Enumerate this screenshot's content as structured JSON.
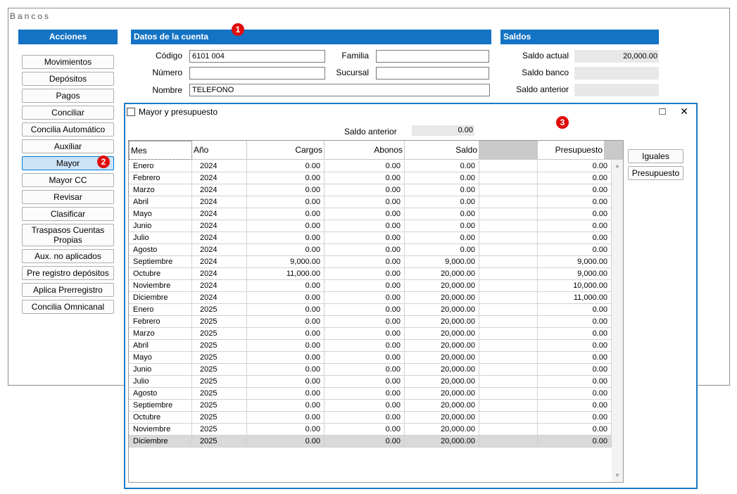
{
  "window": {
    "title": "Bancos"
  },
  "acciones": {
    "header": "Acciones",
    "buttons": [
      {
        "label": "Movimientos"
      },
      {
        "label": "Depósitos"
      },
      {
        "label": "Pagos"
      },
      {
        "label": "Conciliar"
      },
      {
        "label": "Concilia Automático"
      },
      {
        "label": "Auxiliar"
      },
      {
        "label": "Mayor"
      },
      {
        "label": "Mayor CC"
      },
      {
        "label": "Revisar"
      },
      {
        "label": "Clasificar"
      },
      {
        "label": "Traspasos  Cuentas Propias"
      },
      {
        "label": "Aux. no aplicados"
      },
      {
        "label": "Pre registro depósitos"
      },
      {
        "label": "Aplica Prerregistro"
      },
      {
        "label": "Concilia Omnicanal"
      }
    ]
  },
  "cuenta": {
    "header": "Datos de la cuenta",
    "codigo_label": "Código",
    "codigo_value": "6101 004",
    "familia_label": "Familia",
    "familia_value": "",
    "numero_label": "Número",
    "numero_value": "",
    "sucursal_label": "Sucursal",
    "sucursal_value": "",
    "nombre_label": "Nombre",
    "nombre_value": "TELEFONO"
  },
  "saldos": {
    "header": "Saldos",
    "actual_label": "Saldo actual",
    "actual_value": "20,000.00",
    "banco_label": "Saldo banco",
    "banco_value": "",
    "anterior_label": "Saldo anterior",
    "anterior_value": ""
  },
  "badges": {
    "one": "1",
    "two": "2",
    "three": "3"
  },
  "dialog": {
    "title": "Mayor y presupuesto",
    "maximize_icon": "□",
    "close_icon": "✕",
    "saldo_anterior_label": "Saldo anterior",
    "saldo_anterior_value": "0.00",
    "iguales_label": "Iguales",
    "presupuesto_label": "Presupuesto",
    "columns": {
      "mes": "Mes",
      "anio": "Año",
      "cargos": "Cargos",
      "abonos": "Abonos",
      "saldo": "Saldo",
      "presupuesto": "Presupuesto"
    },
    "rows": [
      {
        "mes": "Enero",
        "anio": "2024",
        "cargos": "0.00",
        "abonos": "0.00",
        "saldo": "0.00",
        "presupuesto": "0.00"
      },
      {
        "mes": "Febrero",
        "anio": "2024",
        "cargos": "0.00",
        "abonos": "0.00",
        "saldo": "0.00",
        "presupuesto": "0.00"
      },
      {
        "mes": "Marzo",
        "anio": "2024",
        "cargos": "0.00",
        "abonos": "0.00",
        "saldo": "0.00",
        "presupuesto": "0.00"
      },
      {
        "mes": "Abril",
        "anio": "2024",
        "cargos": "0.00",
        "abonos": "0.00",
        "saldo": "0.00",
        "presupuesto": "0.00"
      },
      {
        "mes": "Mayo",
        "anio": "2024",
        "cargos": "0.00",
        "abonos": "0.00",
        "saldo": "0.00",
        "presupuesto": "0.00"
      },
      {
        "mes": "Junio",
        "anio": "2024",
        "cargos": "0.00",
        "abonos": "0.00",
        "saldo": "0.00",
        "presupuesto": "0.00"
      },
      {
        "mes": "Julio",
        "anio": "2024",
        "cargos": "0.00",
        "abonos": "0.00",
        "saldo": "0.00",
        "presupuesto": "0.00"
      },
      {
        "mes": "Agosto",
        "anio": "2024",
        "cargos": "0.00",
        "abonos": "0.00",
        "saldo": "0.00",
        "presupuesto": "0.00"
      },
      {
        "mes": "Septiembre",
        "anio": "2024",
        "cargos": "9,000.00",
        "abonos": "0.00",
        "saldo": "9,000.00",
        "presupuesto": "9,000.00"
      },
      {
        "mes": "Octubre",
        "anio": "2024",
        "cargos": "11,000.00",
        "abonos": "0.00",
        "saldo": "20,000.00",
        "presupuesto": "9,000.00"
      },
      {
        "mes": "Noviembre",
        "anio": "2024",
        "cargos": "0.00",
        "abonos": "0.00",
        "saldo": "20,000.00",
        "presupuesto": "10,000.00"
      },
      {
        "mes": "Diciembre",
        "anio": "2024",
        "cargos": "0.00",
        "abonos": "0.00",
        "saldo": "20,000.00",
        "presupuesto": "11,000.00"
      },
      {
        "mes": "Enero",
        "anio": "2025",
        "cargos": "0.00",
        "abonos": "0.00",
        "saldo": "20,000.00",
        "presupuesto": "0.00"
      },
      {
        "mes": "Febrero",
        "anio": "2025",
        "cargos": "0.00",
        "abonos": "0.00",
        "saldo": "20,000.00",
        "presupuesto": "0.00"
      },
      {
        "mes": "Marzo",
        "anio": "2025",
        "cargos": "0.00",
        "abonos": "0.00",
        "saldo": "20,000.00",
        "presupuesto": "0.00"
      },
      {
        "mes": "Abril",
        "anio": "2025",
        "cargos": "0.00",
        "abonos": "0.00",
        "saldo": "20,000.00",
        "presupuesto": "0.00"
      },
      {
        "mes": "Mayo",
        "anio": "2025",
        "cargos": "0.00",
        "abonos": "0.00",
        "saldo": "20,000.00",
        "presupuesto": "0.00"
      },
      {
        "mes": "Junio",
        "anio": "2025",
        "cargos": "0.00",
        "abonos": "0.00",
        "saldo": "20,000.00",
        "presupuesto": "0.00"
      },
      {
        "mes": "Julio",
        "anio": "2025",
        "cargos": "0.00",
        "abonos": "0.00",
        "saldo": "20,000.00",
        "presupuesto": "0.00"
      },
      {
        "mes": "Agosto",
        "anio": "2025",
        "cargos": "0.00",
        "abonos": "0.00",
        "saldo": "20,000.00",
        "presupuesto": "0.00"
      },
      {
        "mes": "Septiembre",
        "anio": "2025",
        "cargos": "0.00",
        "abonos": "0.00",
        "saldo": "20,000.00",
        "presupuesto": "0.00"
      },
      {
        "mes": "Octubre",
        "anio": "2025",
        "cargos": "0.00",
        "abonos": "0.00",
        "saldo": "20,000.00",
        "presupuesto": "0.00"
      },
      {
        "mes": "Noviembre",
        "anio": "2025",
        "cargos": "0.00",
        "abonos": "0.00",
        "saldo": "20,000.00",
        "presupuesto": "0.00"
      },
      {
        "mes": "Diciembre",
        "anio": "2025",
        "cargos": "0.00",
        "abonos": "0.00",
        "saldo": "20,000.00",
        "presupuesto": "0.00"
      }
    ]
  },
  "colors": {
    "accent": "#1473c4",
    "badge": "#e00c0c",
    "dialog_border": "#1a7bc7",
    "selected_row": "#d9d9d9"
  }
}
